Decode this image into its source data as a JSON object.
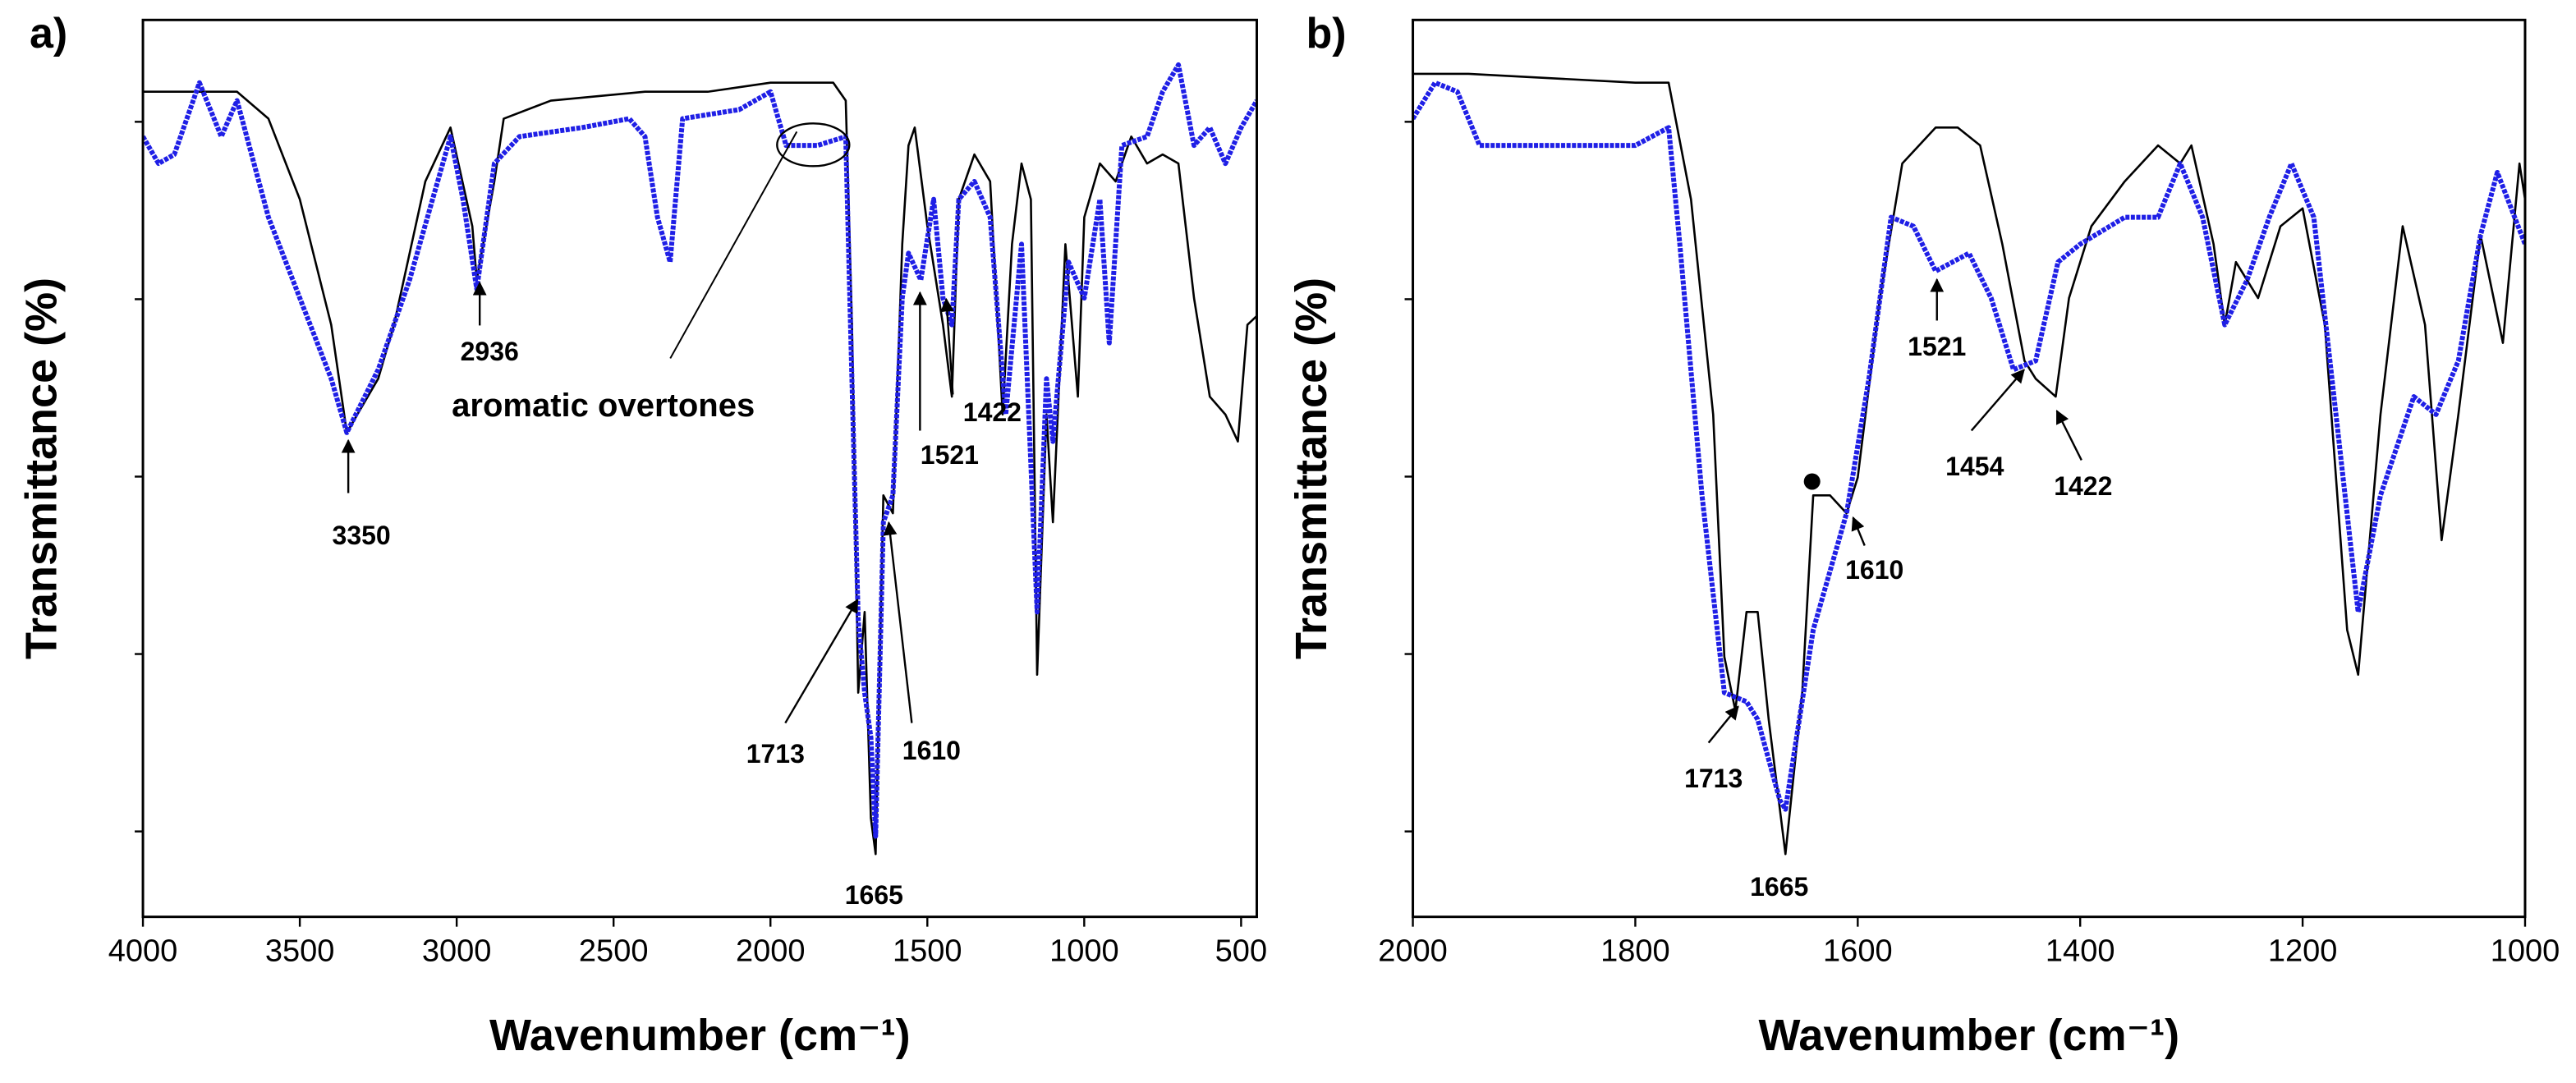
{
  "chart_data": [
    {
      "type": "line",
      "panel_label": "a)",
      "xlabel": "Wavenumber (cm⁻¹)",
      "ylabel": "Transmittance (%)",
      "xlim": [
        4000,
        450
      ],
      "xticks": [
        4000,
        3500,
        3000,
        2500,
        2000,
        1500,
        1000,
        500
      ],
      "ylim": [
        0,
        100
      ],
      "annotations": [
        "3350",
        "2936",
        "aromatic overtones",
        "1713",
        "1610",
        "1665",
        "1521",
        "1422"
      ],
      "series": [
        {
          "color": "#000000",
          "x": [
            4000,
            3700,
            3600,
            3500,
            3400,
            3350,
            3250,
            3200,
            3100,
            3020,
            2950,
            2936,
            2880,
            2850,
            2700,
            2400,
            2200,
            2000,
            1800,
            1760,
            1740,
            1720,
            1700,
            1680,
            1665,
            1640,
            1610,
            1580,
            1560,
            1540,
            1500,
            1450,
            1422,
            1400,
            1350,
            1300,
            1260,
            1230,
            1200,
            1170,
            1150,
            1120,
            1100,
            1060,
            1020,
            1000,
            950,
            900,
            850,
            800,
            750,
            700,
            650,
            600,
            550,
            510,
            480,
            450
          ],
          "values": [
            92,
            92,
            89,
            80,
            66,
            54,
            60,
            66,
            82,
            88,
            77,
            71,
            82,
            89,
            91,
            92,
            92,
            93,
            93,
            91,
            66,
            25,
            34,
            11,
            7,
            47,
            45,
            75,
            86,
            88,
            77,
            66,
            58,
            80,
            85,
            82,
            56,
            75,
            84,
            80,
            27,
            56,
            44,
            75,
            58,
            78,
            84,
            82,
            87,
            84,
            85,
            84,
            69,
            58,
            56,
            53,
            66,
            67
          ]
        },
        {
          "color": "#1f1fe6",
          "x": [
            4000,
            3950,
            3900,
            3820,
            3750,
            3700,
            3600,
            3500,
            3400,
            3350,
            3250,
            3150,
            3020,
            2980,
            2936,
            2880,
            2800,
            2600,
            2450,
            2400,
            2360,
            2320,
            2280,
            2100,
            2000,
            1950,
            1850,
            1760,
            1745,
            1720,
            1700,
            1680,
            1665,
            1640,
            1610,
            1580,
            1560,
            1521,
            1480,
            1450,
            1422,
            1400,
            1350,
            1300,
            1250,
            1200,
            1150,
            1120,
            1100,
            1050,
            1000,
            950,
            920,
            880,
            800,
            750,
            700,
            650,
            600,
            550,
            500,
            450
          ],
          "values": [
            87,
            84,
            85,
            93,
            87,
            91,
            78,
            69,
            60,
            54,
            61,
            71,
            87,
            80,
            70,
            84,
            87,
            88,
            89,
            87,
            78,
            73,
            89,
            90,
            92,
            86,
            86,
            87,
            66,
            33,
            25,
            20,
            9,
            44,
            47,
            69,
            74,
            71,
            80,
            69,
            66,
            80,
            82,
            78,
            56,
            75,
            34,
            60,
            53,
            73,
            69,
            80,
            64,
            86,
            87,
            92,
            95,
            86,
            88,
            84,
            88,
            91
          ]
        }
      ]
    },
    {
      "type": "line",
      "panel_label": "b)",
      "xlabel": "Wavenumber (cm⁻¹)",
      "ylabel": "Transmittance (%)",
      "xlim": [
        2000,
        1000
      ],
      "xticks": [
        2000,
        1800,
        1600,
        1400,
        1200,
        1000
      ],
      "ylim": [
        0,
        100
      ],
      "annotations": [
        "1713",
        "1665",
        "1610",
        "1521",
        "1454",
        "1422"
      ],
      "series": [
        {
          "color": "#000000",
          "x": [
            2000,
            1950,
            1800,
            1770,
            1750,
            1730,
            1720,
            1710,
            1700,
            1690,
            1680,
            1665,
            1650,
            1640,
            1625,
            1610,
            1600,
            1580,
            1560,
            1530,
            1510,
            1490,
            1470,
            1450,
            1440,
            1422,
            1410,
            1390,
            1360,
            1330,
            1310,
            1300,
            1280,
            1270,
            1260,
            1240,
            1220,
            1200,
            1180,
            1160,
            1150,
            1130,
            1110,
            1090,
            1075,
            1060,
            1040,
            1020,
            1005,
            1000
          ],
          "values": [
            94,
            94,
            93,
            93,
            80,
            56,
            29,
            23,
            34,
            34,
            22,
            7,
            25,
            47,
            47,
            45,
            49,
            69,
            84,
            88,
            88,
            86,
            75,
            62,
            60,
            58,
            69,
            77,
            82,
            86,
            84,
            86,
            75,
            66,
            73,
            69,
            77,
            79,
            66,
            32,
            27,
            56,
            77,
            66,
            42,
            56,
            76,
            64,
            84,
            80
          ]
        },
        {
          "color": "#1f1fe6",
          "x": [
            2000,
            1980,
            1960,
            1940,
            1900,
            1850,
            1800,
            1770,
            1760,
            1740,
            1720,
            1700,
            1690,
            1670,
            1665,
            1640,
            1610,
            1590,
            1570,
            1550,
            1530,
            1500,
            1480,
            1460,
            1440,
            1420,
            1400,
            1360,
            1330,
            1310,
            1290,
            1270,
            1250,
            1230,
            1210,
            1190,
            1170,
            1150,
            1130,
            1100,
            1080,
            1060,
            1040,
            1025,
            1000
          ],
          "values": [
            89,
            93,
            92,
            86,
            86,
            86,
            86,
            88,
            75,
            47,
            25,
            24,
            22,
            13,
            12,
            32,
            45,
            60,
            78,
            77,
            72,
            74,
            69,
            61,
            62,
            73,
            75,
            78,
            78,
            84,
            78,
            66,
            71,
            78,
            84,
            78,
            56,
            34,
            47,
            58,
            56,
            62,
            76,
            83,
            75
          ]
        }
      ]
    }
  ]
}
